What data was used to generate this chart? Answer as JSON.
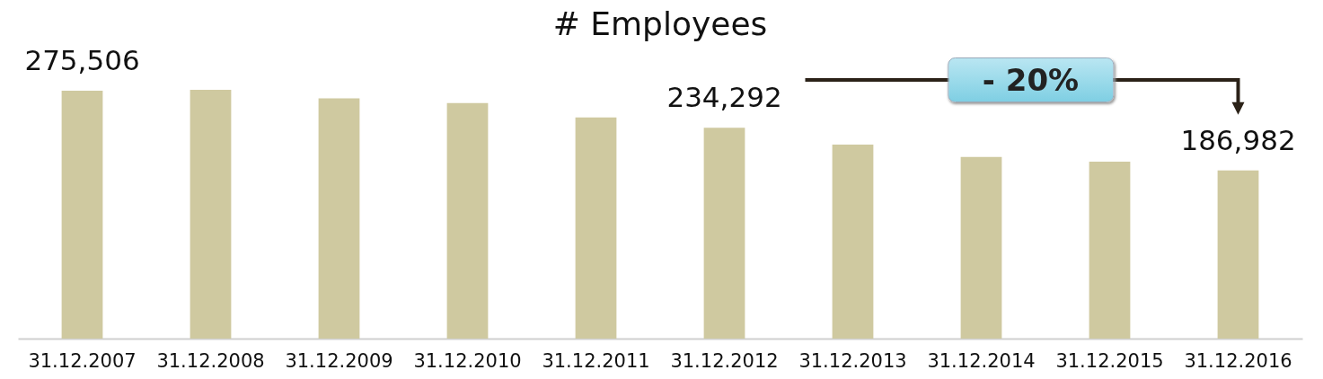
{
  "chart_data": {
    "type": "bar",
    "title": "# Employees",
    "categories": [
      "31.12.2007",
      "31.12.2008",
      "31.12.2009",
      "31.12.2010",
      "31.12.2011",
      "31.12.2012",
      "31.12.2013",
      "31.12.2014",
      "31.12.2015",
      "31.12.2016"
    ],
    "values": [
      275506,
      276600,
      267100,
      261800,
      246000,
      234292,
      215600,
      201900,
      196600,
      186982
    ],
    "value_labels": [
      "275,506",
      null,
      null,
      null,
      null,
      "234,292",
      null,
      null,
      null,
      "186,982"
    ],
    "color": "#cfc9a0",
    "annotations": [
      "- 20%"
    ]
  }
}
